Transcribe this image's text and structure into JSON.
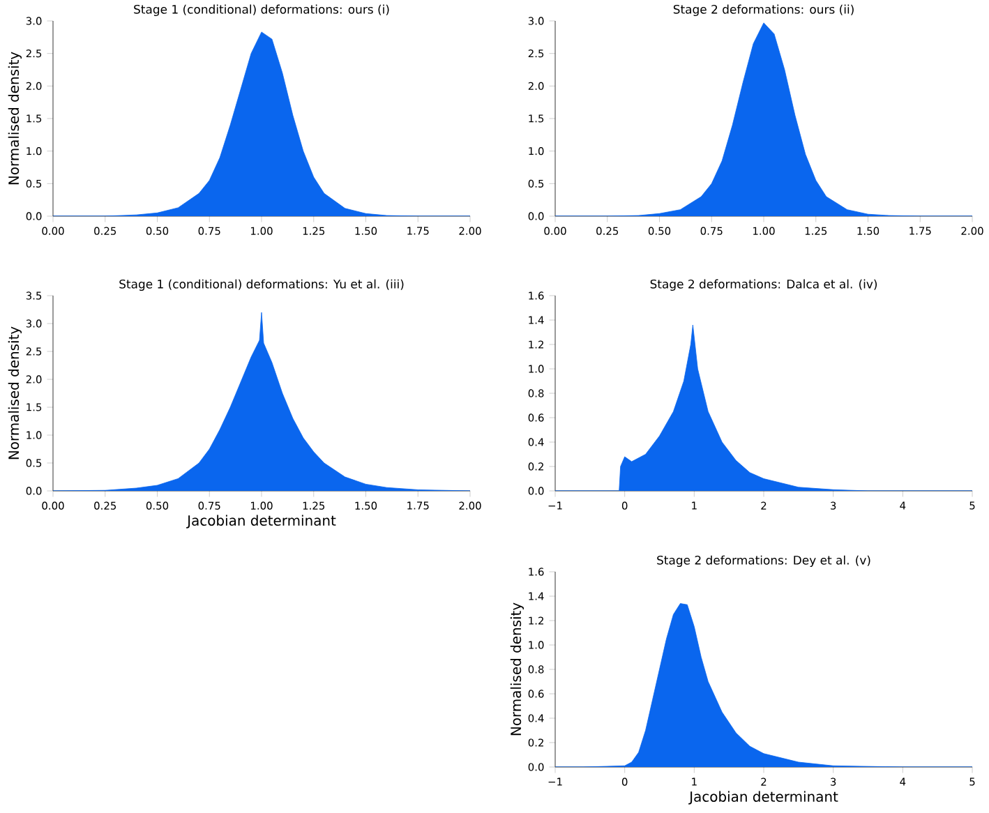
{
  "chart_data": [
    {
      "type": "area",
      "title": "Stage 1 (conditional) deformations: ours (i)",
      "ylabel": "Normalised density",
      "color": "#0a66ee",
      "x": [
        0.0,
        0.25,
        0.4,
        0.5,
        0.6,
        0.7,
        0.75,
        0.8,
        0.85,
        0.9,
        0.95,
        1.0,
        1.05,
        1.1,
        1.15,
        1.2,
        1.25,
        1.3,
        1.4,
        1.5,
        1.6,
        1.75,
        2.0
      ],
      "values": [
        0,
        0,
        0.02,
        0.05,
        0.13,
        0.35,
        0.55,
        0.9,
        1.4,
        1.95,
        2.5,
        2.83,
        2.72,
        2.2,
        1.55,
        1.0,
        0.6,
        0.35,
        0.12,
        0.04,
        0.01,
        0,
        0
      ],
      "xlim": [
        0,
        2
      ],
      "ylim": [
        0,
        3
      ],
      "xticks": [
        {
          "value": 0,
          "label": "0.00"
        },
        {
          "value": 0.25,
          "label": "0.25"
        },
        {
          "value": 0.5,
          "label": "0.50"
        },
        {
          "value": 0.75,
          "label": "0.75"
        },
        {
          "value": 1,
          "label": "1.00"
        },
        {
          "value": 1.25,
          "label": "1.25"
        },
        {
          "value": 1.5,
          "label": "1.50"
        },
        {
          "value": 1.75,
          "label": "1.75"
        },
        {
          "value": 2,
          "label": "2.00"
        }
      ],
      "yticks": [
        {
          "value": 0,
          "label": "0.0"
        },
        {
          "value": 0.5,
          "label": "0.5"
        },
        {
          "value": 1,
          "label": "1.0"
        },
        {
          "value": 1.5,
          "label": "1.5"
        },
        {
          "value": 2,
          "label": "2.0"
        },
        {
          "value": 2.5,
          "label": "2.5"
        },
        {
          "value": 3,
          "label": "3.0"
        }
      ]
    },
    {
      "type": "area",
      "title": "Stage 2 deformations: ours (ii)",
      "color": "#0a66ee",
      "x": [
        0.0,
        0.25,
        0.4,
        0.5,
        0.6,
        0.7,
        0.75,
        0.8,
        0.85,
        0.9,
        0.95,
        1.0,
        1.05,
        1.1,
        1.15,
        1.2,
        1.25,
        1.3,
        1.4,
        1.5,
        1.6,
        1.75,
        2.0
      ],
      "values": [
        0,
        0,
        0.01,
        0.04,
        0.1,
        0.3,
        0.5,
        0.85,
        1.4,
        2.05,
        2.65,
        2.97,
        2.8,
        2.25,
        1.55,
        0.95,
        0.55,
        0.3,
        0.1,
        0.03,
        0.01,
        0,
        0
      ],
      "xlim": [
        0,
        2
      ],
      "ylim": [
        0,
        3
      ],
      "xticks": [
        {
          "value": 0,
          "label": "0.00"
        },
        {
          "value": 0.25,
          "label": "0.25"
        },
        {
          "value": 0.5,
          "label": "0.50"
        },
        {
          "value": 0.75,
          "label": "0.75"
        },
        {
          "value": 1,
          "label": "1.00"
        },
        {
          "value": 1.25,
          "label": "1.25"
        },
        {
          "value": 1.5,
          "label": "1.50"
        },
        {
          "value": 1.75,
          "label": "1.75"
        },
        {
          "value": 2,
          "label": "2.00"
        }
      ],
      "yticks": [
        {
          "value": 0,
          "label": "0.0"
        },
        {
          "value": 0.5,
          "label": "0.5"
        },
        {
          "value": 1,
          "label": "1.0"
        },
        {
          "value": 1.5,
          "label": "1.5"
        },
        {
          "value": 2,
          "label": "2.0"
        },
        {
          "value": 2.5,
          "label": "2.5"
        },
        {
          "value": 3,
          "label": "3.0"
        }
      ]
    },
    {
      "type": "area",
      "title": "Stage 1 (conditional) deformations: Yu et al. (iii)",
      "ylabel": "Normalised density",
      "xlabel": "Jacobian determinant",
      "color": "#0a66ee",
      "x": [
        0.0,
        0.25,
        0.4,
        0.5,
        0.6,
        0.7,
        0.75,
        0.8,
        0.85,
        0.9,
        0.95,
        0.99,
        1.0,
        1.01,
        1.05,
        1.1,
        1.15,
        1.2,
        1.25,
        1.3,
        1.4,
        1.5,
        1.6,
        1.75,
        2.0
      ],
      "values": [
        0,
        0.01,
        0.05,
        0.1,
        0.22,
        0.5,
        0.75,
        1.1,
        1.5,
        1.95,
        2.4,
        2.7,
        3.2,
        2.65,
        2.3,
        1.75,
        1.3,
        0.95,
        0.7,
        0.5,
        0.25,
        0.12,
        0.06,
        0.02,
        0
      ],
      "xlim": [
        0,
        2
      ],
      "ylim": [
        0,
        3.5
      ],
      "xticks": [
        {
          "value": 0,
          "label": "0.00"
        },
        {
          "value": 0.25,
          "label": "0.25"
        },
        {
          "value": 0.5,
          "label": "0.50"
        },
        {
          "value": 0.75,
          "label": "0.75"
        },
        {
          "value": 1,
          "label": "1.00"
        },
        {
          "value": 1.25,
          "label": "1.25"
        },
        {
          "value": 1.5,
          "label": "1.50"
        },
        {
          "value": 1.75,
          "label": "1.75"
        },
        {
          "value": 2,
          "label": "2.00"
        }
      ],
      "yticks": [
        {
          "value": 0,
          "label": "0.0"
        },
        {
          "value": 0.5,
          "label": "0.5"
        },
        {
          "value": 1,
          "label": "1.0"
        },
        {
          "value": 1.5,
          "label": "1.5"
        },
        {
          "value": 2,
          "label": "2.0"
        },
        {
          "value": 2.5,
          "label": "2.5"
        },
        {
          "value": 3,
          "label": "3.0"
        },
        {
          "value": 3.5,
          "label": "3.5"
        }
      ]
    },
    {
      "type": "area",
      "title": "Stage 2 deformations: Dalca et al. (iv)",
      "color": "#0a66ee",
      "x": [
        -1,
        -0.08,
        -0.06,
        0,
        0.1,
        0.3,
        0.5,
        0.7,
        0.85,
        0.95,
        0.98,
        1.05,
        1.2,
        1.4,
        1.6,
        1.8,
        2.0,
        2.5,
        3.0,
        3.5,
        5
      ],
      "values": [
        0,
        0,
        0.2,
        0.28,
        0.24,
        0.3,
        0.45,
        0.65,
        0.9,
        1.2,
        1.36,
        1.0,
        0.65,
        0.4,
        0.25,
        0.15,
        0.1,
        0.03,
        0.01,
        0,
        0
      ],
      "xlim": [
        -1,
        5
      ],
      "ylim": [
        0,
        1.6
      ],
      "xticks": [
        {
          "value": -1,
          "label": "−1"
        },
        0,
        1,
        2,
        3,
        4,
        5
      ],
      "yticks": [
        {
          "value": 0,
          "label": "0.0"
        },
        {
          "value": 0.2,
          "label": "0.2"
        },
        {
          "value": 0.4,
          "label": "0.4"
        },
        {
          "value": 0.6,
          "label": "0.6"
        },
        {
          "value": 0.8,
          "label": "0.8"
        },
        {
          "value": 1,
          "label": "1.0"
        },
        {
          "value": 1.2,
          "label": "1.2"
        },
        {
          "value": 1.4,
          "label": "1.4"
        },
        {
          "value": 1.6,
          "label": "1.6"
        }
      ]
    },
    {
      "type": "area",
      "title": "Stage 2 deformations: Dey et al. (v)",
      "ylabel": "Normalised density",
      "xlabel": "Jacobian determinant",
      "color": "#0a66ee",
      "x": [
        -1,
        -0.6,
        0,
        0.1,
        0.2,
        0.3,
        0.4,
        0.5,
        0.6,
        0.7,
        0.8,
        0.9,
        1.0,
        1.1,
        1.2,
        1.4,
        1.6,
        1.8,
        2.0,
        2.5,
        3.0,
        4,
        5
      ],
      "values": [
        0,
        0,
        0.01,
        0.04,
        0.12,
        0.3,
        0.55,
        0.8,
        1.05,
        1.25,
        1.34,
        1.33,
        1.15,
        0.9,
        0.7,
        0.45,
        0.28,
        0.17,
        0.11,
        0.04,
        0.01,
        0,
        0
      ],
      "xlim": [
        -1,
        5
      ],
      "ylim": [
        0,
        1.6
      ],
      "xticks": [
        {
          "value": -1,
          "label": "−1"
        },
        0,
        1,
        2,
        3,
        4,
        5
      ],
      "yticks": [
        {
          "value": 0,
          "label": "0.0"
        },
        {
          "value": 0.2,
          "label": "0.2"
        },
        {
          "value": 0.4,
          "label": "0.4"
        },
        {
          "value": 0.6,
          "label": "0.6"
        },
        {
          "value": 0.8,
          "label": "0.8"
        },
        {
          "value": 1,
          "label": "1.0"
        },
        {
          "value": 1.2,
          "label": "1.2"
        },
        {
          "value": 1.4,
          "label": "1.4"
        },
        {
          "value": 1.6,
          "label": "1.6"
        }
      ]
    }
  ]
}
